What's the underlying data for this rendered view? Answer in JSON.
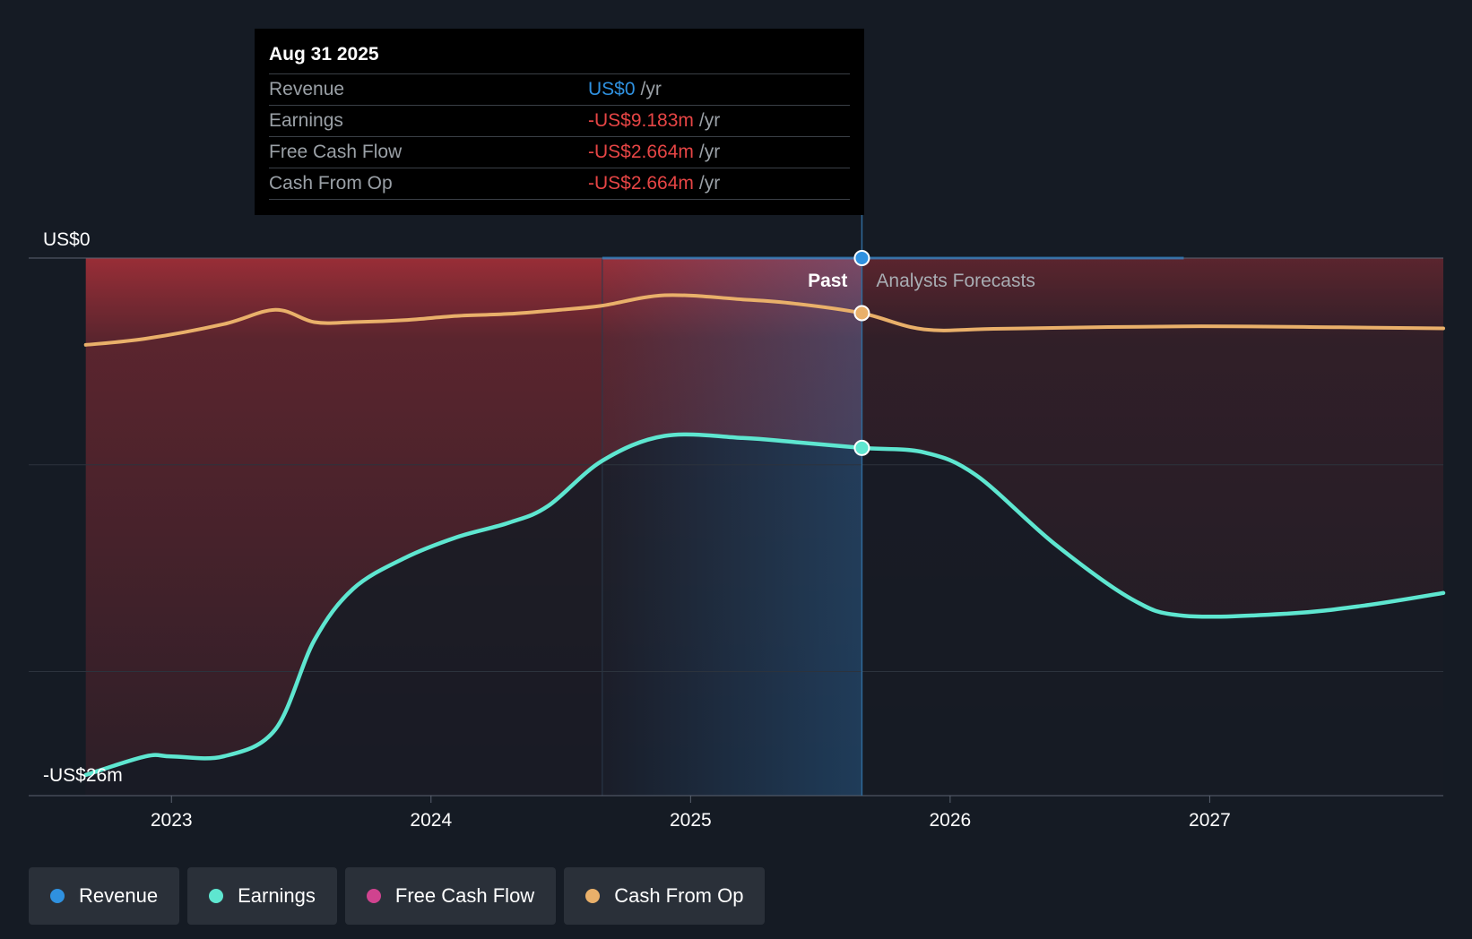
{
  "chart_data": {
    "type": "line",
    "title": "",
    "y_top_label": "US$0",
    "y_bottom_label": "-US$26m",
    "ylim": [
      -26,
      0
    ],
    "x_ticks": [
      {
        "label": "2023",
        "x": 2023.0
      },
      {
        "label": "2024",
        "x": 2024.0
      },
      {
        "label": "2025",
        "x": 2025.0
      },
      {
        "label": "2026",
        "x": 2026.0
      },
      {
        "label": "2027",
        "x": 2027.0
      }
    ],
    "xlim": [
      2022.45,
      2027.9
    ],
    "past_label": "Past",
    "forecast_label": "Analysts Forecasts",
    "divider_x": 2025.66,
    "highlight_start_x": 2024.66,
    "colors": {
      "revenue": "#2f91e0",
      "earnings": "#5ee6d0",
      "free_cash_flow": "#d0438f",
      "cash_from_op": "#e9b06a",
      "negative_fill": "#b0313a"
    },
    "series": [
      {
        "name": "Revenue",
        "key": "revenue",
        "x": [
          2024.66,
          2025.66,
          2026.9
        ],
        "values": [
          0,
          0,
          0
        ]
      },
      {
        "name": "Earnings",
        "key": "earnings",
        "x": [
          2022.67,
          2022.9,
          2023.0,
          2023.2,
          2023.4,
          2023.55,
          2023.7,
          2023.9,
          2024.1,
          2024.3,
          2024.45,
          2024.66,
          2024.9,
          2025.2,
          2025.4,
          2025.66,
          2025.9,
          2026.1,
          2026.4,
          2026.7,
          2026.9,
          2027.3,
          2027.6,
          2027.9
        ],
        "values": [
          -25.0,
          -24.1,
          -24.1,
          -24.1,
          -22.8,
          -18.5,
          -16.0,
          -14.5,
          -13.5,
          -12.8,
          -12.0,
          -9.8,
          -8.6,
          -8.7,
          -8.9,
          -9.183,
          -9.4,
          -10.5,
          -13.8,
          -16.5,
          -17.3,
          -17.2,
          -16.8,
          -16.2
        ]
      },
      {
        "name": "Cash From Op",
        "key": "cash_from_op",
        "x": [
          2022.67,
          2022.9,
          2023.2,
          2023.4,
          2023.55,
          2023.7,
          2023.9,
          2024.1,
          2024.3,
          2024.5,
          2024.66,
          2024.9,
          2025.2,
          2025.4,
          2025.66,
          2025.9,
          2026.2,
          2026.9,
          2027.5,
          2027.9
        ],
        "values": [
          -4.2,
          -3.9,
          -3.2,
          -2.5,
          -3.1,
          -3.1,
          -3.0,
          -2.8,
          -2.7,
          -2.5,
          -2.3,
          -1.8,
          -2.0,
          -2.2,
          -2.664,
          -3.45,
          -3.42,
          -3.3,
          -3.35,
          -3.4
        ]
      }
    ],
    "highlight_point": {
      "x": 2025.66,
      "revenue": 0,
      "earnings": -9.183,
      "cash_from_op": -2.664
    }
  },
  "tooltip": {
    "date": "Aug 31 2025",
    "rows": [
      {
        "label": "Revenue",
        "value": "US$0",
        "unit": "/yr",
        "color": "#2f91e0"
      },
      {
        "label": "Earnings",
        "value": "-US$9.183m",
        "unit": "/yr",
        "color": "#e64545"
      },
      {
        "label": "Free Cash Flow",
        "value": "-US$2.664m",
        "unit": "/yr",
        "color": "#e64545"
      },
      {
        "label": "Cash From Op",
        "value": "-US$2.664m",
        "unit": "/yr",
        "color": "#e64545"
      }
    ]
  },
  "legend": {
    "items": [
      {
        "label": "Revenue",
        "color": "#2f91e0"
      },
      {
        "label": "Earnings",
        "color": "#5ee6d0"
      },
      {
        "label": "Free Cash Flow",
        "color": "#d0438f"
      },
      {
        "label": "Cash From Op",
        "color": "#e9b06a"
      }
    ]
  }
}
